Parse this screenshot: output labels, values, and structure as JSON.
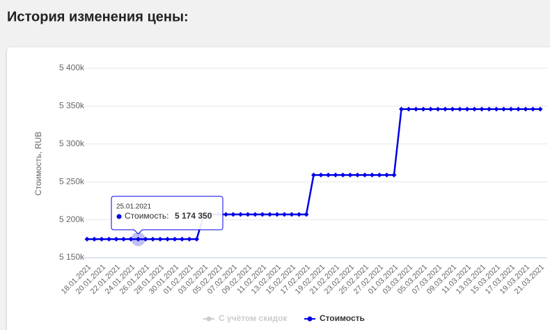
{
  "page_title": "История изменения цены:",
  "chart_data": {
    "type": "line",
    "y_label": "Стоимость, RUB",
    "categories": [
      "18.01.2021",
      null,
      "20.01.2021",
      null,
      "22.01.2021",
      null,
      "24.01.2021",
      null,
      "26.01.2021",
      null,
      "28.01.2021",
      null,
      "30.01.2021",
      null,
      "01.02.2021",
      null,
      "03.02.2021",
      null,
      "05.02.2021",
      null,
      "07.02.2021",
      null,
      "09.02.2021",
      null,
      "11.02.2021",
      null,
      "13.02.2021",
      null,
      "15.02.2021",
      null,
      "17.02.2021",
      null,
      "19.02.2021",
      null,
      "21.02.2021",
      null,
      "23.02.2021",
      null,
      "25.02.2021",
      null,
      "27.02.2021",
      null,
      "01.03.2021",
      null,
      "03.03.2021",
      null,
      "05.03.2021",
      null,
      "07.03.2021",
      null,
      "09.03.2021",
      null,
      "11.03.2021",
      null,
      "13.03.2021",
      null,
      "15.03.2021",
      null,
      "17.03.2021",
      null,
      "19.03.2021",
      null,
      "21.03.2021"
    ],
    "series": [
      {
        "name": "С учётом скидок",
        "color": "#cccccc",
        "visible": false,
        "values": [
          null,
          null,
          null,
          null,
          null,
          null,
          null,
          null,
          null,
          null,
          null,
          null,
          null,
          null,
          null,
          null,
          null,
          null,
          null,
          null,
          null,
          null,
          null,
          null,
          null,
          null,
          null,
          null,
          null,
          null,
          null,
          null,
          null,
          null,
          null,
          null,
          null,
          null,
          null,
          null,
          null,
          null,
          null,
          null,
          null,
          null,
          null,
          null,
          null,
          null,
          null,
          null,
          null,
          null,
          null,
          null,
          null,
          null,
          null,
          null,
          null,
          null,
          null
        ]
      },
      {
        "name": "Стоимость",
        "color": "#0000e6",
        "visible": true,
        "values": [
          5174350,
          5174350,
          5174350,
          5174350,
          5174350,
          5174350,
          5174350,
          5174350,
          5174350,
          5174350,
          5174350,
          5174350,
          5174350,
          5174350,
          5174350,
          5174350,
          5207000,
          5207000,
          5207000,
          5207000,
          5207000,
          5207000,
          5207000,
          5207000,
          5207000,
          5207000,
          5207000,
          5207000,
          5207000,
          5207000,
          5207000,
          5259000,
          5259000,
          5259000,
          5259000,
          5259000,
          5259000,
          5259000,
          5259000,
          5259000,
          5259000,
          5259000,
          5259000,
          5346000,
          5346000,
          5346000,
          5346000,
          5346000,
          5346000,
          5346000,
          5346000,
          5346000,
          5346000,
          5346000,
          5346000,
          5346000,
          5346000,
          5346000,
          5346000,
          5346000,
          5346000,
          5346000,
          5346000
        ]
      }
    ],
    "ylim": [
      5150000,
      5400000
    ],
    "yticks": [
      {
        "value": 5150000,
        "label": "5 150k"
      },
      {
        "value": 5200000,
        "label": "5 200k"
      },
      {
        "value": 5250000,
        "label": "5 250k"
      },
      {
        "value": 5300000,
        "label": "5 300k"
      },
      {
        "value": 5350000,
        "label": "5 350k"
      },
      {
        "value": 5400000,
        "label": "5 400k"
      }
    ],
    "grid": true,
    "legend": "bottom",
    "tooltip": {
      "index": 7,
      "date": "25.01.2021",
      "series_label": "Стоимость:",
      "value": 5174350,
      "label": "5 174 350"
    }
  }
}
